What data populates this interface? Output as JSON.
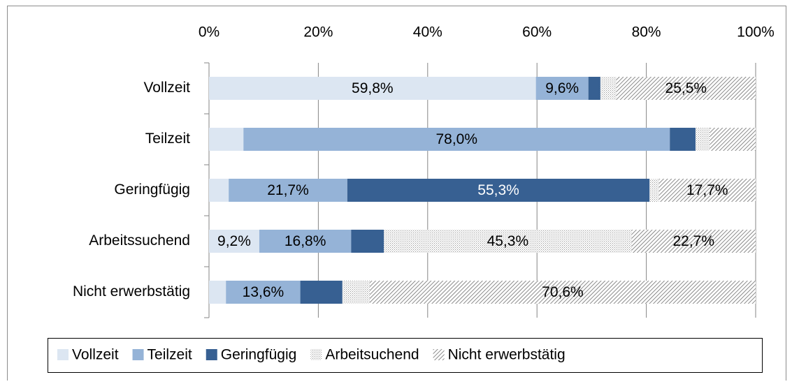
{
  "chart_data": {
    "type": "stacked-bar-horizontal",
    "categories": [
      "Vollzeit",
      "Teilzeit",
      "Geringfügig",
      "Arbeitssuchend",
      "Nicht erwerbstätig"
    ],
    "series": [
      {
        "name": "Vollzeit",
        "color": "#dce6f2",
        "values": [
          59.8,
          6.3,
          3.6,
          9.2,
          3.1
        ],
        "value_labels": [
          "59,8%",
          null,
          null,
          "9,2%",
          null
        ]
      },
      {
        "name": "Teilzeit",
        "color": "#95b3d7",
        "values": [
          9.6,
          78.0,
          21.7,
          16.8,
          13.6
        ],
        "value_labels": [
          "9,6%",
          "78,0%",
          "21,7%",
          "16,8%",
          "13,6%"
        ]
      },
      {
        "name": "Geringfügig",
        "color": "#376092",
        "values": [
          2.2,
          4.7,
          55.3,
          6.0,
          7.7
        ],
        "value_labels": [
          null,
          null,
          "55,3%",
          null,
          null
        ]
      },
      {
        "name": "Arbeitsuchend",
        "color": "#9a9a9a",
        "pattern": "dots",
        "values": [
          2.9,
          2.6,
          1.7,
          45.3,
          5.0
        ],
        "value_labels": [
          null,
          null,
          null,
          "45,3%",
          null
        ]
      },
      {
        "name": "Nicht erwerbstätig",
        "color": "#6e6e6e",
        "pattern": "hatch",
        "values": [
          25.5,
          8.4,
          17.7,
          22.7,
          70.6
        ],
        "value_labels": [
          "25,5%",
          null,
          "17,7%",
          "22,7%",
          "70,6%"
        ]
      }
    ],
    "xlim": [
      0,
      100
    ],
    "xticks": [
      {
        "value": 0,
        "label": "0%"
      },
      {
        "value": 20,
        "label": "20%"
      },
      {
        "value": 40,
        "label": "40%"
      },
      {
        "value": 60,
        "label": "60%"
      },
      {
        "value": 80,
        "label": "80%"
      },
      {
        "value": 100,
        "label": "100%"
      }
    ],
    "grid": true,
    "legend": "bottom"
  }
}
